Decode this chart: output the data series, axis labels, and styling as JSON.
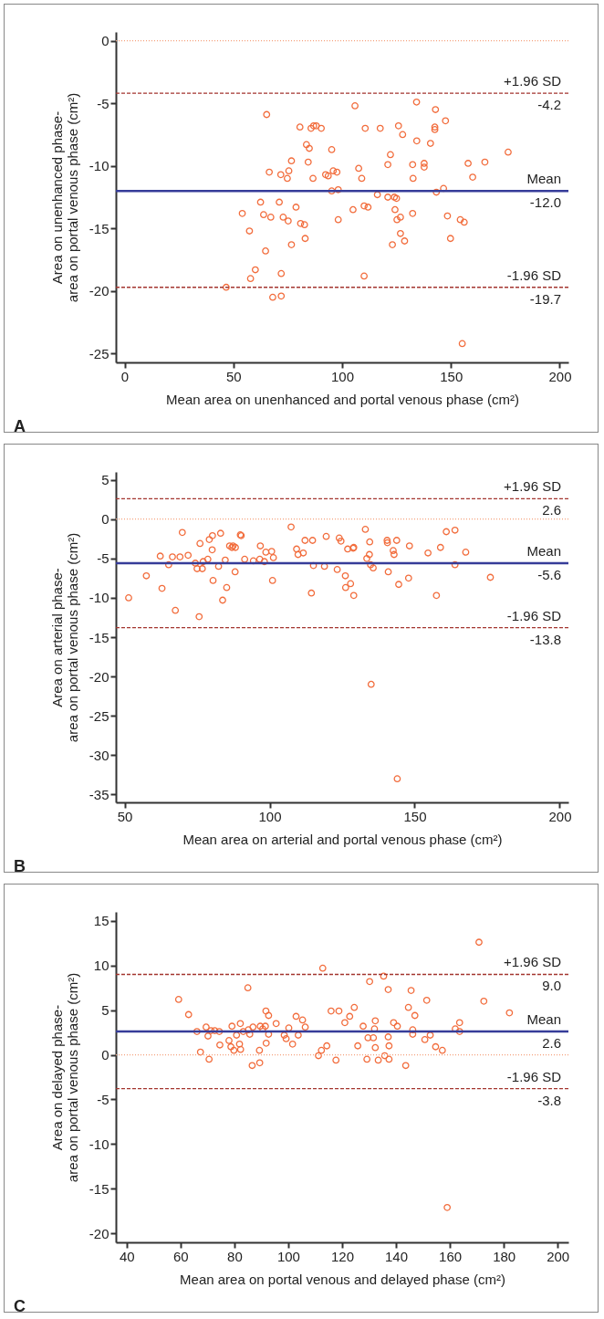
{
  "chart_data": [
    {
      "type": "scatter",
      "xlabel": "Mean area on unenhanced and portal venous phase (cm²)",
      "ylabel": "Area on unenhanced phase-\narea on portal venous phase (cm²)",
      "xlim": [
        -4,
        204
      ],
      "ylim": [
        -25.7,
        0.7
      ],
      "xticks": [
        0,
        50,
        100,
        150,
        200
      ],
      "yticks": [
        0,
        -5,
        -10,
        -15,
        -20,
        -25
      ],
      "grid": false,
      "marker": "circle",
      "series": [
        {
          "color": "#f26d3d",
          "x": [
            46.7,
            54.1,
            57.4,
            57.9,
            60.1,
            62.5,
            63.9,
            64.8,
            65.3,
            66.5,
            67.2,
            68.1,
            71.1,
            71.8,
            72.0,
            72.0,
            72.9,
            74.8,
            75.2,
            75.5,
            76.7,
            76.7,
            78.8,
            80.6,
            80.9,
            82.7,
            83.0,
            83.6,
            84.4,
            84.9,
            85.7,
            86.6,
            86.9,
            88.1,
            90.4,
            92.4,
            93.6,
            95.2,
            95.2,
            95.9,
            97.6,
            98.2,
            98.2,
            105.0,
            105.9,
            107.6,
            109.0,
            110.1,
            110.1,
            110.6,
            111.9,
            116.2,
            117.5,
            121.0,
            121.0,
            122.2,
            123.1,
            124.0,
            124.3,
            125.0,
            125.2,
            125.9,
            126.8,
            126.8,
            127.8,
            128.7,
            132.4,
            132.6,
            132.4,
            134.2,
            134.3,
            137.7,
            137.7,
            140.6,
            142.6,
            142.6,
            142.9,
            143.3,
            146.6,
            147.5,
            148.4,
            149.8,
            154.3,
            155.2,
            156.1,
            157.9,
            160.0,
            165.6,
            176.3
          ],
          "values": [
            -19.7,
            -13.8,
            -15.2,
            -19.0,
            -18.3,
            -12.9,
            -13.9,
            -16.8,
            -5.9,
            -10.5,
            -14.1,
            -20.5,
            -12.9,
            -10.7,
            -18.6,
            -20.4,
            -14.1,
            -11.0,
            -14.4,
            -10.4,
            -9.6,
            -16.3,
            -13.3,
            -6.9,
            -14.6,
            -14.7,
            -15.8,
            -8.3,
            -9.7,
            -8.6,
            -7.0,
            -11.0,
            -6.8,
            -6.8,
            -7.0,
            -10.7,
            -10.8,
            -8.7,
            -12.0,
            -10.4,
            -10.5,
            -11.9,
            -14.3,
            -13.5,
            -5.2,
            -10.2,
            -11.0,
            -13.2,
            -18.8,
            -7.0,
            -13.3,
            -12.3,
            -7.0,
            -9.9,
            -12.5,
            -9.1,
            -16.3,
            -12.5,
            -13.5,
            -12.6,
            -14.3,
            -6.8,
            -14.1,
            -15.4,
            -7.5,
            -16.0,
            -9.9,
            -11.0,
            -13.8,
            -4.9,
            -8.0,
            -9.8,
            -10.1,
            -8.2,
            -7.1,
            -6.9,
            -5.5,
            -12.1,
            -11.8,
            -6.4,
            -14.0,
            -15.8,
            -14.3,
            -24.2,
            -14.5,
            -9.8,
            -10.9,
            -9.7,
            -8.9
          ]
        }
      ],
      "ref_lines": [
        {
          "axis": "y",
          "value": 0,
          "color": "#f5a27e",
          "line_style": "dotted"
        },
        {
          "axis": "y",
          "value": -4.2,
          "label": "+1.96 SD",
          "color": "#a3352f",
          "line_style": "dashed"
        },
        {
          "axis": "y",
          "value": -12.0,
          "label": "Mean",
          "color": "#363c99",
          "line_style": "solid"
        },
        {
          "axis": "y",
          "value": -19.7,
          "label": "-1.96 SD",
          "color": "#a3352f",
          "line_style": "dashed"
        }
      ],
      "annotations": [
        {
          "text": "-4.2",
          "y": -4.2
        },
        {
          "text": "-12.0",
          "y": -12.0
        },
        {
          "text": "-19.7",
          "y": -19.7
        },
        "A"
      ]
    },
    {
      "type": "scatter",
      "xlabel": "Mean area on arterial and portal venous phase (cm²)",
      "ylabel": "Area on arterial phase-\narea on portal venous phase (cm²)",
      "xlim": [
        47,
        203
      ],
      "ylim": [
        -36,
        6
      ],
      "xticks": [
        50,
        100,
        150,
        200
      ],
      "yticks": [
        5,
        0,
        -5,
        -10,
        -15,
        -20,
        -25,
        -30,
        -35
      ],
      "grid": false,
      "marker": "circle",
      "series": [
        {
          "color": "#f26d3d",
          "x": [
            51.4,
            57.5,
            62.3,
            62.9,
            65.2,
            66.5,
            67.5,
            69.1,
            69.9,
            71.9,
            74.4,
            75.0,
            75.7,
            76.0,
            76.8,
            77.1,
            78.7,
            79.2,
            80.2,
            80.3,
            80.5,
            82.4,
            83.1,
            83.8,
            84.7,
            85.2,
            86.2,
            87.0,
            87.4,
            88.2,
            88.1,
            89.9,
            90.2,
            91.4,
            94.4,
            96.6,
            96.8,
            98.2,
            98.7,
            100.7,
            101.0,
            101.3,
            107.4,
            109.3,
            109.8,
            111.6,
            112.2,
            114.4,
            114.8,
            115.1,
            118.9,
            119.5,
            123.3,
            124.0,
            124.6,
            126.1,
            126.2,
            126.9,
            127.9,
            128.8,
            129.0,
            129.0,
            133.0,
            133.5,
            134.4,
            134.5,
            134.8,
            135.7,
            140.5,
            140.6,
            140.9,
            142.6,
            142.9,
            143.8,
            144.5,
            147.9,
            148.2,
            154.6,
            157.5,
            158.9,
            160.9,
            163.9,
            163.9,
            167.6,
            176.1,
            135,
            144
          ],
          "values": [
            -10.0,
            -7.2,
            -4.7,
            -8.8,
            -5.8,
            -4.8,
            -11.6,
            -4.8,
            -1.7,
            -4.6,
            -5.6,
            -6.3,
            -12.4,
            -3.1,
            -6.3,
            -5.4,
            -5.1,
            -2.6,
            -3.9,
            -2.1,
            -7.8,
            -6.0,
            -1.8,
            -10.3,
            -5.2,
            -8.7,
            -3.4,
            -3.6,
            -3.4,
            -3.6,
            -6.7,
            -2.0,
            -2.1,
            -5.1,
            -5.3,
            -5.1,
            -3.4,
            -5.4,
            -4.2,
            -4.1,
            -7.8,
            -4.9,
            -1.0,
            -3.8,
            -4.5,
            -4.3,
            -2.7,
            -9.4,
            -2.7,
            -5.9,
            -6.0,
            -2.2,
            -6.4,
            -2.4,
            -2.8,
            -7.2,
            -8.7,
            -3.8,
            -8.2,
            -3.7,
            -3.6,
            -9.7,
            -1.3,
            -5.0,
            -4.5,
            -2.9,
            -5.8,
            -6.2,
            -2.7,
            -3.0,
            -6.7,
            -4.0,
            -4.5,
            -2.7,
            -8.3,
            -7.5,
            -3.4,
            -4.3,
            -9.7,
            -3.6,
            -1.6,
            -1.4,
            -5.8,
            -4.2,
            -7.4,
            -21.0,
            -33.0
          ]
        }
      ],
      "ref_lines": [
        {
          "axis": "y",
          "value": 0,
          "color": "#f5a27e",
          "line_style": "dotted"
        },
        {
          "axis": "y",
          "value": 2.6,
          "label": "+1.96 SD",
          "color": "#a3352f",
          "line_style": "dashed"
        },
        {
          "axis": "y",
          "value": -5.6,
          "label": "Mean",
          "color": "#363c99",
          "line_style": "solid"
        },
        {
          "axis": "y",
          "value": -13.8,
          "label": "-1.96 SD",
          "color": "#a3352f",
          "line_style": "dashed"
        }
      ],
      "annotations": [
        {
          "text": "2.6",
          "y": 2.6
        },
        {
          "text": "-5.6",
          "y": -5.6
        },
        {
          "text": "-13.8",
          "y": -13.8
        },
        "B"
      ]
    },
    {
      "type": "scatter",
      "xlabel": "Mean area on portal venous and delayed phase (cm²)",
      "ylabel": "Area on delayed phase-\narea on portal venous phase (cm²)",
      "xlim": [
        36,
        204
      ],
      "ylim": [
        -21,
        16
      ],
      "xticks": [
        40,
        60,
        80,
        100,
        120,
        140,
        160,
        180,
        200
      ],
      "yticks": [
        15,
        10,
        5,
        0,
        -5,
        -10,
        -15,
        -20
      ],
      "grid": false,
      "marker": "circle",
      "series": [
        {
          "color": "#f26d3d",
          "x": [
            59.3,
            63.0,
            66.1,
            67.4,
            69.5,
            70.2,
            70.6,
            71.3,
            72.7,
            74.4,
            74.6,
            78.0,
            78.7,
            79.1,
            79.8,
            80.8,
            81.9,
            82.2,
            82.3,
            83.3,
            85.0,
            85.2,
            85.7,
            86.6,
            86.9,
            89.3,
            89.4,
            89.6,
            90.5,
            91.5,
            91.7,
            91.8,
            92.7,
            92.7,
            95.5,
            98.5,
            99.2,
            100.2,
            101.6,
            102.9,
            103.7,
            105.3,
            106.3,
            111.2,
            112.3,
            112.8,
            114.3,
            115.9,
            117.7,
            118.8,
            121.0,
            122.8,
            124.5,
            125.8,
            127.8,
            129.2,
            129.6,
            130.2,
            131.6,
            132.0,
            132.3,
            132.3,
            133.4,
            135.4,
            135.8,
            137.1,
            137.1,
            137.4,
            137.4,
            139.1,
            140.5,
            143.6,
            144.6,
            145.6,
            146.2,
            146.2,
            147.0,
            150.7,
            151.4,
            152.7,
            154.7,
            157.2,
            162.0,
            163.6,
            163.6,
            170.8,
            172.6,
            182.1,
            159
          ],
          "values": [
            6.2,
            4.5,
            2.6,
            0.3,
            3.1,
            2.1,
            -0.5,
            2.7,
            2.7,
            2.6,
            1.1,
            1.6,
            0.9,
            3.2,
            0.5,
            2.2,
            1.2,
            3.5,
            0.6,
            2.6,
            7.5,
            2.8,
            2.3,
            -1.2,
            3.1,
            0.5,
            -0.9,
            3.2,
            2.9,
            3.2,
            4.9,
            1.3,
            4.4,
            2.3,
            3.5,
            2.2,
            1.8,
            3.0,
            1.2,
            4.3,
            2.2,
            3.9,
            3.1,
            -0.1,
            0.5,
            9.7,
            1.0,
            4.9,
            -0.6,
            4.9,
            3.6,
            4.3,
            5.3,
            1.0,
            3.2,
            -0.5,
            1.9,
            8.2,
            1.9,
            2.9,
            3.8,
            0.8,
            -0.6,
            8.8,
            -0.1,
            7.3,
            2.0,
            1.0,
            -0.5,
            3.6,
            3.2,
            -1.2,
            5.3,
            7.2,
            2.8,
            2.3,
            4.4,
            1.7,
            6.1,
            2.2,
            0.9,
            0.5,
            2.9,
            3.6,
            2.6,
            12.6,
            6.0,
            4.7,
            -17.1
          ]
        }
      ],
      "ref_lines": [
        {
          "axis": "y",
          "value": 0,
          "color": "#f5a27e",
          "line_style": "dotted"
        },
        {
          "axis": "y",
          "value": 9.0,
          "label": "+1.96 SD",
          "color": "#a3352f",
          "line_style": "dashed"
        },
        {
          "axis": "y",
          "value": 2.6,
          "label": "Mean",
          "color": "#363c99",
          "line_style": "solid"
        },
        {
          "axis": "y",
          "value": -3.8,
          "label": "-1.96 SD",
          "color": "#a3352f",
          "line_style": "dashed"
        }
      ],
      "annotations": [
        {
          "text": "9.0",
          "y": 9.0
        },
        {
          "text": "2.6",
          "y": 2.6
        },
        {
          "text": "-3.8",
          "y": -3.8
        },
        "C"
      ]
    }
  ]
}
